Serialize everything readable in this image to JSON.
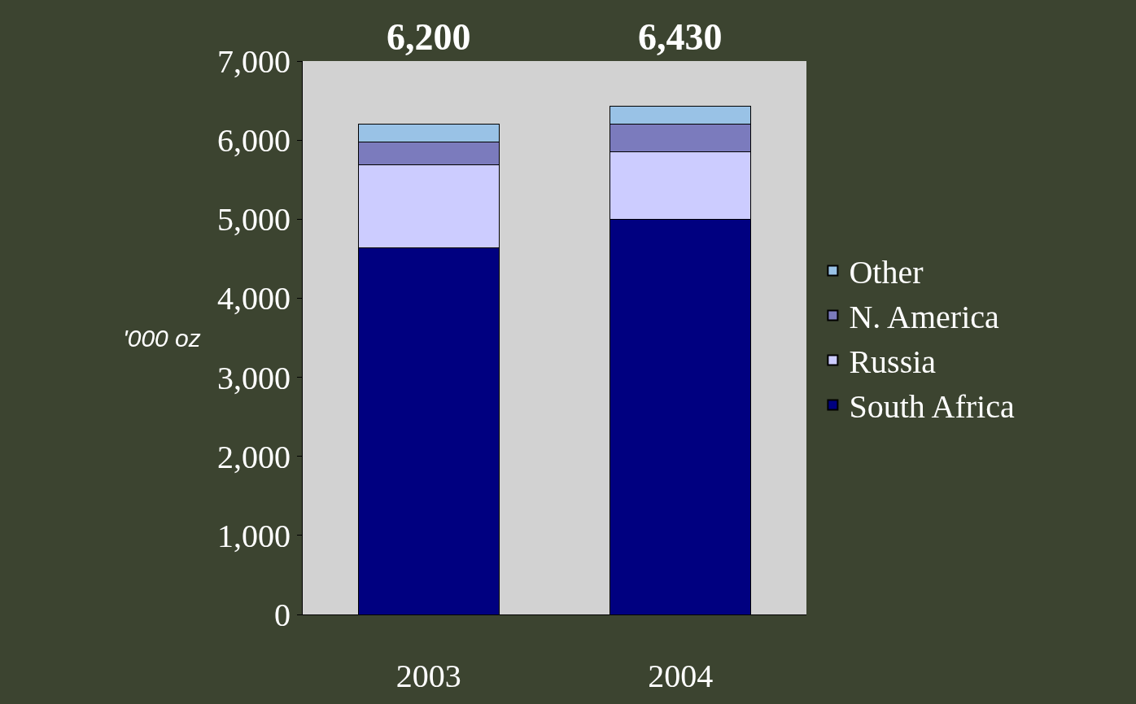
{
  "chart_data": {
    "type": "bar",
    "stacked": true,
    "ylabel": "'000 oz",
    "categories": [
      "2003",
      "2004"
    ],
    "series": [
      {
        "name": "South Africa",
        "color": "#000080",
        "values": [
          4640,
          5000
        ]
      },
      {
        "name": "Russia",
        "color": "#ccccff",
        "values": [
          1050,
          850
        ]
      },
      {
        "name": "N. America",
        "color": "#7b7bbd",
        "values": [
          290,
          350
        ]
      },
      {
        "name": "Other",
        "color": "#99c2e6",
        "values": [
          220,
          230
        ]
      }
    ],
    "totals": [
      "6,200",
      "6,430"
    ],
    "ylim": [
      0,
      7000
    ],
    "yticks": [
      0,
      {
        "value": 1000,
        "label": "1,000"
      },
      {
        "value": 2000,
        "label": "2,000"
      },
      {
        "value": 3000,
        "label": "3,000"
      },
      {
        "value": 4000,
        "label": "4,000"
      },
      {
        "value": 5000,
        "label": "5,000"
      },
      {
        "value": 6000,
        "label": "6,000"
      },
      {
        "value": 7000,
        "label": "7,000"
      }
    ],
    "grid": false,
    "legend": "right"
  }
}
